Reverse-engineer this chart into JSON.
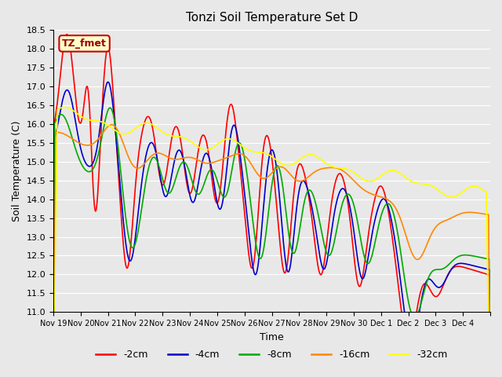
{
  "title": "Tonzi Soil Temperature Set D",
  "xlabel": "Time",
  "ylabel": "Soil Temperature (C)",
  "ylim": [
    11.0,
    18.5
  ],
  "bg_color": "#e8e8e8",
  "plot_bg_color": "#e8e8e8",
  "legend_label": "TZ_fmet",
  "legend_box_color": "#ffffcc",
  "legend_box_edge_color": "#cc0000",
  "series_colors": {
    "-2cm": "#ff0000",
    "-4cm": "#0000cc",
    "-8cm": "#00aa00",
    "-16cm": "#ff8800",
    "-32cm": "#ffff00"
  },
  "series_labels": [
    "-2cm",
    "-4cm",
    "-8cm",
    "-16cm",
    "-32cm"
  ],
  "tick_labels": [
    "Nov 19",
    "Nov 20",
    "Nov 21",
    "Nov 22",
    "Nov 23",
    "Nov 24",
    "Nov 25",
    "Nov 26",
    "Nov 27",
    "Nov 28",
    "Nov 29",
    "Nov 30",
    "Dec 1",
    "Dec 2",
    "Dec 3",
    "Dec 4",
    ""
  ],
  "yticks": [
    11.0,
    11.5,
    12.0,
    12.5,
    13.0,
    13.5,
    14.0,
    14.5,
    15.0,
    15.5,
    16.0,
    16.5,
    17.0,
    17.5,
    18.0,
    18.5
  ]
}
